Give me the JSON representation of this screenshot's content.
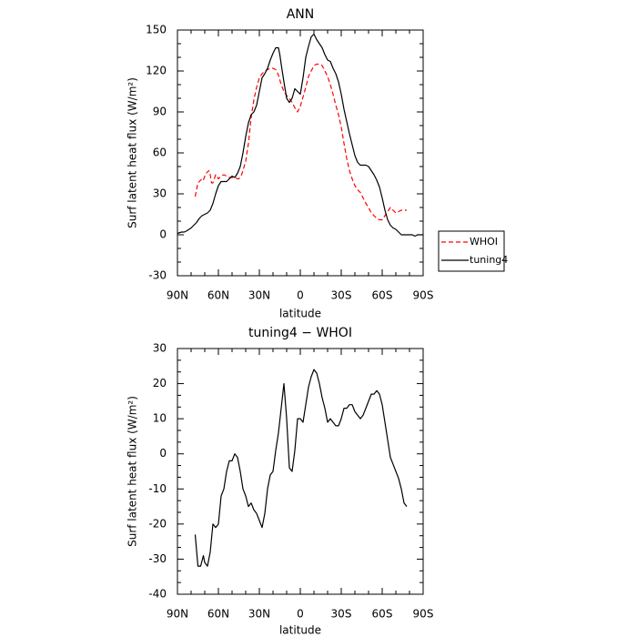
{
  "chart_data": [
    {
      "type": "line",
      "title": "ANN",
      "xlabel": "latitude",
      "ylabel": "Surf latent heat flux (W/m²)",
      "xlim": [
        90,
        -90
      ],
      "ylim": [
        -30,
        150
      ],
      "x_ticks": [
        "90N",
        "60N",
        "30N",
        "0",
        "30S",
        "60S",
        "90S"
      ],
      "y_ticks": [
        "150",
        "120",
        "90",
        "60",
        "30",
        "0",
        "-30"
      ],
      "legend_position": "right",
      "series": [
        {
          "name": "WHOI",
          "color": "#ff0000",
          "dashed": true,
          "x": [
            77,
            76,
            75,
            73,
            72,
            71,
            70,
            69,
            68,
            67,
            66,
            65,
            64,
            62,
            60,
            58,
            56,
            54,
            52,
            50,
            48,
            46,
            45,
            44,
            43,
            42,
            40,
            38,
            36,
            34,
            32,
            30,
            28,
            26,
            24,
            22,
            20,
            18,
            16,
            14,
            12,
            10,
            8,
            6,
            4,
            2,
            0,
            -2,
            -4,
            -6,
            -8,
            -10,
            -12,
            -14,
            -16,
            -18,
            -20,
            -22,
            -24,
            -26,
            -28,
            -30,
            -32,
            -34,
            -36,
            -38,
            -40,
            -42,
            -44,
            -46,
            -48,
            -50,
            -52,
            -54,
            -56,
            -58,
            -60,
            -62,
            -64,
            -66,
            -68,
            -70,
            -72,
            -74,
            -76,
            -78
          ],
          "values": [
            28,
            33,
            38,
            40,
            41,
            40,
            43,
            45,
            46,
            47,
            44,
            38,
            38,
            44,
            41,
            43,
            44,
            43,
            42,
            42,
            42,
            41,
            41,
            42,
            44,
            47,
            54,
            67,
            86,
            99,
            108,
            115,
            118,
            120,
            121,
            122,
            122,
            121,
            117,
            110,
            105,
            102,
            100,
            97,
            93,
            90,
            94,
            101,
            108,
            116,
            120,
            124,
            125,
            125,
            124,
            120,
            116,
            110,
            103,
            95,
            88,
            79,
            67,
            56,
            47,
            41,
            36,
            33,
            31,
            27,
            23,
            20,
            16,
            14,
            12,
            11,
            11,
            14,
            17,
            20,
            18,
            16,
            17,
            18,
            18,
            18
          ]
        },
        {
          "name": "tuning4",
          "color": "#000000",
          "dashed": false,
          "x": [
            90,
            87,
            85,
            83,
            80,
            78,
            76,
            74,
            72,
            70,
            68,
            66,
            64,
            62,
            60,
            58,
            56,
            54,
            52,
            50,
            48,
            46,
            44,
            42,
            40,
            38,
            36,
            34,
            32,
            30,
            28,
            26,
            24,
            22,
            20,
            18,
            16,
            15,
            14,
            12,
            10,
            8,
            6,
            4,
            2,
            0,
            -2,
            -4,
            -6,
            -8,
            -10,
            -12,
            -14,
            -16,
            -18,
            -20,
            -22,
            -24,
            -26,
            -28,
            -30,
            -32,
            -34,
            -36,
            -38,
            -40,
            -42,
            -44,
            -46,
            -48,
            -50,
            -52,
            -54,
            -56,
            -58,
            -60,
            -62,
            -64,
            -66,
            -68,
            -70,
            -72,
            -74,
            -76,
            -78,
            -80,
            -82,
            -84,
            -86,
            -88,
            -90
          ],
          "values": [
            1,
            2,
            2,
            3,
            5,
            7,
            9,
            12,
            14,
            15,
            16,
            18,
            23,
            30,
            36,
            39,
            39,
            39,
            41,
            43,
            42,
            45,
            50,
            60,
            72,
            82,
            88,
            90,
            95,
            105,
            115,
            118,
            122,
            128,
            133,
            137,
            137,
            132,
            125,
            112,
            100,
            97,
            100,
            107,
            105,
            103,
            115,
            130,
            138,
            145,
            147,
            143,
            140,
            137,
            132,
            128,
            127,
            122,
            118,
            112,
            103,
            92,
            83,
            74,
            66,
            58,
            53,
            51,
            51,
            51,
            50,
            47,
            44,
            40,
            35,
            27,
            18,
            11,
            7,
            5,
            4,
            2,
            0,
            0,
            0,
            0,
            0,
            -1,
            0,
            0,
            0
          ]
        }
      ]
    },
    {
      "type": "line",
      "title": "tuning4 − WHOI",
      "xlabel": "latitude",
      "ylabel": "Surf latent heat flux (W/m²)",
      "xlim": [
        90,
        -90
      ],
      "ylim": [
        -40,
        30
      ],
      "x_ticks": [
        "90N",
        "60N",
        "30N",
        "0",
        "30S",
        "60S",
        "90S"
      ],
      "y_ticks": [
        "30",
        "20",
        "10",
        "0",
        "-10",
        "-20",
        "-30",
        "-40"
      ],
      "series": [
        {
          "color": "#000000",
          "dashed": false,
          "x": [
            77,
            75,
            73,
            71,
            70,
            68,
            66,
            64,
            62,
            60,
            58,
            56,
            54,
            52,
            50,
            48,
            46,
            44,
            42,
            40,
            38,
            36,
            34,
            32,
            30,
            28,
            26,
            24,
            22,
            20,
            18,
            16,
            14,
            12,
            10,
            8,
            6,
            4,
            2,
            0,
            -2,
            -4,
            -6,
            -8,
            -10,
            -12,
            -14,
            -16,
            -18,
            -20,
            -22,
            -24,
            -26,
            -28,
            -30,
            -32,
            -34,
            -36,
            -38,
            -40,
            -42,
            -44,
            -46,
            -48,
            -50,
            -52,
            -54,
            -56,
            -58,
            -60,
            -62,
            -64,
            -66,
            -68,
            -70,
            -72,
            -74,
            -76,
            -78
          ],
          "values": [
            -23,
            -32,
            -32,
            -29,
            -31,
            -32,
            -28,
            -20,
            -21,
            -20,
            -12,
            -10,
            -5,
            -2,
            -2,
            0,
            -1,
            -5,
            -10,
            -12,
            -15,
            -14,
            -16,
            -17,
            -19,
            -21,
            -17,
            -10,
            -6,
            -5,
            1,
            6,
            13,
            20,
            10,
            -4,
            -5,
            1,
            10,
            10,
            9,
            14,
            19,
            22,
            24,
            23,
            20,
            16,
            13,
            9,
            10,
            9,
            8,
            8,
            10,
            13,
            13,
            14,
            14,
            12,
            11,
            10,
            11,
            13,
            15,
            17,
            17,
            18,
            17,
            14,
            9,
            4,
            -1,
            -3,
            -5,
            -7,
            -10,
            -14,
            -15
          ]
        }
      ]
    }
  ]
}
